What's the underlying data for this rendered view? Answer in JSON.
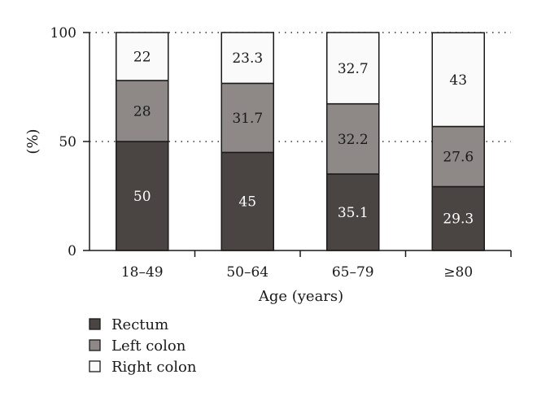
{
  "chart_data": {
    "type": "bar",
    "stacked": true,
    "title": "",
    "xlabel": "Age (years)",
    "ylabel": "(%)",
    "ylim": [
      0,
      100
    ],
    "yticks": [
      0,
      50,
      100
    ],
    "grid": "dotted horizontal at 50 and 100",
    "legend_placement": "bottom-left",
    "categories": [
      "18–49",
      "50–64",
      "65–79",
      "≥80"
    ],
    "series": [
      {
        "name": "Rectum",
        "color": "#4a4543",
        "label_color": "#ffffff",
        "values": [
          50,
          45,
          35.1,
          29.3
        ]
      },
      {
        "name": "Left colon",
        "color": "#8e8887",
        "label_color": "#1a1a1a",
        "values": [
          28,
          31.7,
          32.2,
          27.6
        ]
      },
      {
        "name": "Right colon",
        "color": "#fbfafa",
        "label_color": "#1a1a1a",
        "values": [
          22,
          23.3,
          32.7,
          43
        ]
      }
    ]
  }
}
